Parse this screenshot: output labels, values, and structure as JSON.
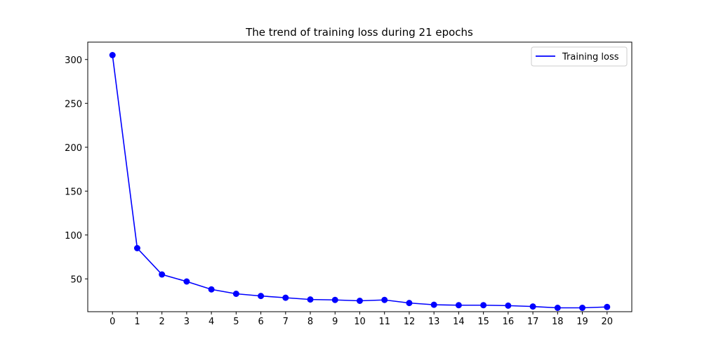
{
  "chart_data": {
    "type": "line",
    "title": "The trend of training loss during 21 epochs",
    "xlabel": "",
    "ylabel": "",
    "x": [
      0,
      1,
      2,
      3,
      4,
      5,
      6,
      7,
      8,
      9,
      10,
      11,
      12,
      13,
      14,
      15,
      16,
      17,
      18,
      19,
      20
    ],
    "xticks": [
      0,
      1,
      2,
      3,
      4,
      5,
      6,
      7,
      8,
      9,
      10,
      11,
      12,
      13,
      14,
      15,
      16,
      17,
      18,
      19,
      20
    ],
    "yticks": [
      50,
      100,
      150,
      200,
      250,
      300
    ],
    "xlim": [
      -1,
      21
    ],
    "ylim": [
      12.6,
      319.8
    ],
    "grid": false,
    "legend_position": "top-right",
    "series": [
      {
        "name": "Training loss",
        "color": "#0000ff",
        "marker": "circle",
        "values": [
          305,
          85,
          55,
          47,
          38,
          33,
          30.5,
          28.5,
          26.5,
          26,
          25,
          26,
          22.5,
          20.5,
          20,
          20,
          19.5,
          18.5,
          17,
          17,
          18
        ]
      }
    ]
  }
}
